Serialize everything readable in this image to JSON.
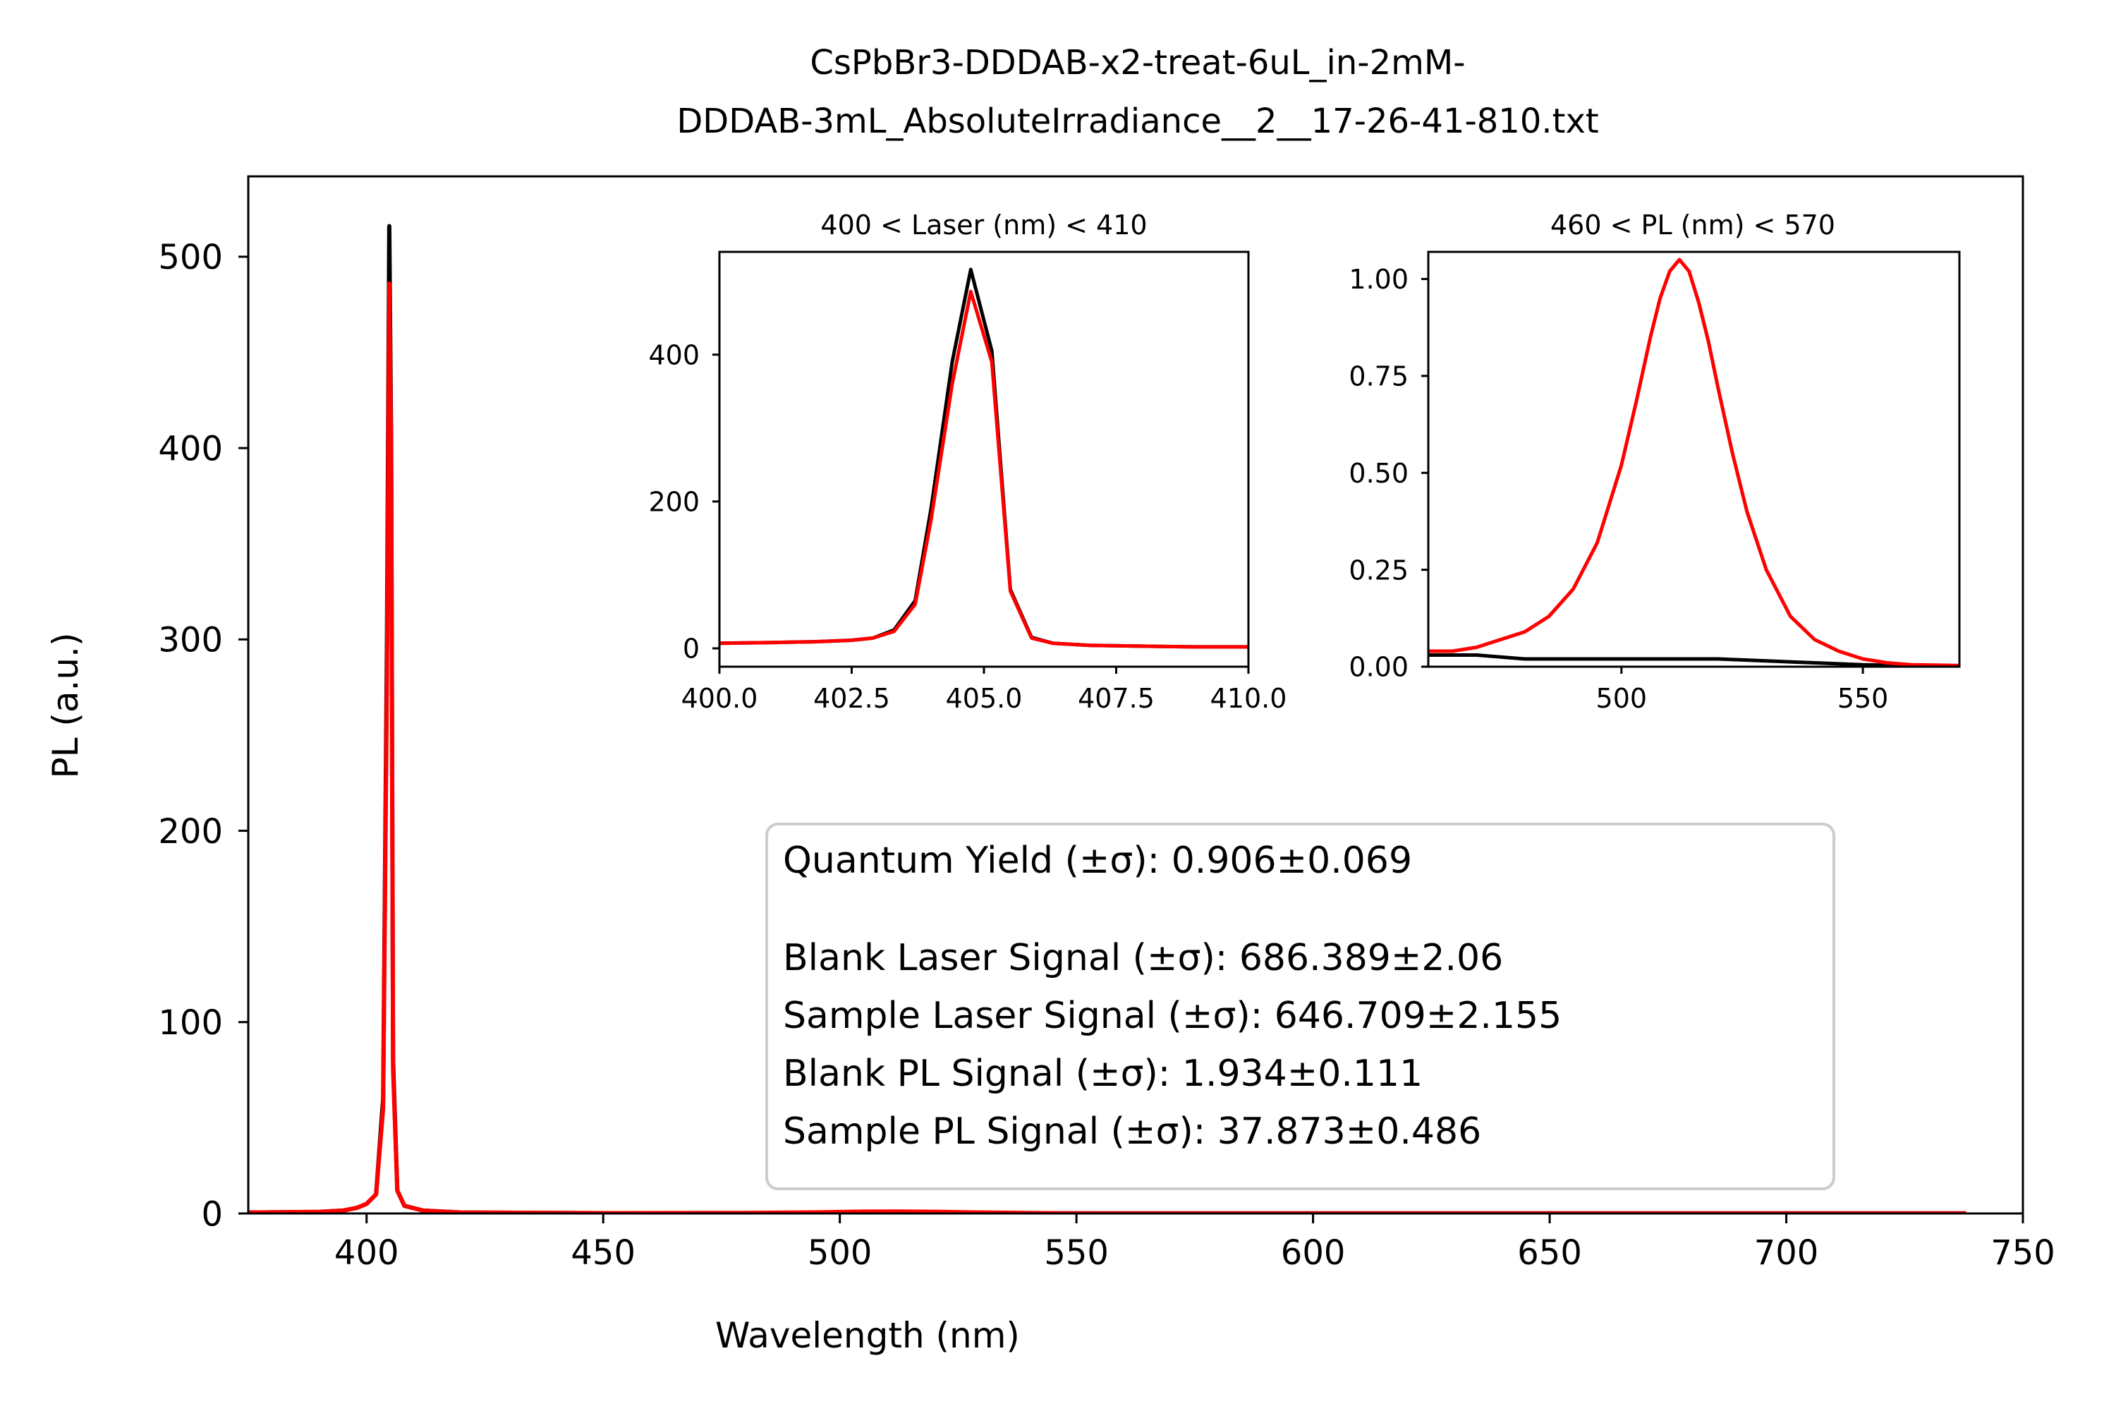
{
  "figure": {
    "title_line1": "CsPbBr3-DDDAB-x2-treat-6uL_in-2mM-",
    "title_line2": "DDDAB-3mL_AbsoluteIrradiance__2__17-26-41-810.txt"
  },
  "colors": {
    "blank": "#000000",
    "sample": "#ff0000"
  },
  "chart_data": [
    {
      "id": "main",
      "type": "line",
      "title": "",
      "xlabel": "Wavelength (nm)",
      "ylabel": "PL (a.u.)",
      "xlim": [
        375,
        750
      ],
      "ylim": [
        0,
        542
      ],
      "xticks": [
        400,
        450,
        500,
        550,
        600,
        650,
        700,
        750
      ],
      "yticks": [
        0,
        100,
        200,
        300,
        400,
        500
      ],
      "series": [
        {
          "key": "blank",
          "x": [
            375,
            390,
            395,
            398,
            400,
            402,
            403.5,
            404.3,
            404.8,
            405.2,
            405.6,
            406.5,
            408,
            412,
            420,
            450,
            500,
            550,
            600,
            650,
            700,
            738
          ],
          "y": [
            0.5,
            0.8,
            1.5,
            3,
            5,
            10,
            60,
            300,
            516,
            400,
            80,
            12,
            4,
            1.5,
            0.5,
            0.2,
            0.1,
            0.1,
            0.1,
            0.1,
            0.1,
            0.1
          ]
        },
        {
          "key": "sample",
          "x": [
            375,
            390,
            395,
            398,
            400,
            402,
            403.5,
            404.3,
            404.8,
            405.2,
            405.6,
            406.5,
            408,
            412,
            420,
            450,
            480,
            495,
            505,
            512,
            520,
            530,
            545,
            560,
            600,
            650,
            700,
            738
          ],
          "y": [
            0.5,
            0.8,
            1.5,
            3,
            5,
            10,
            55,
            280,
            486,
            390,
            75,
            12,
            4,
            1.5,
            0.5,
            0.2,
            0.3,
            0.6,
            0.95,
            1.05,
            0.9,
            0.5,
            0.15,
            0.05,
            0.02,
            0.02,
            0.02,
            0.02
          ]
        }
      ]
    },
    {
      "id": "inset_laser",
      "type": "line",
      "title": "400 < Laser (nm) < 410",
      "xlabel": "",
      "ylabel": "",
      "xlim": [
        400,
        410
      ],
      "ylim": [
        -25,
        540
      ],
      "xticks": [
        400.0,
        402.5,
        405.0,
        407.5,
        410.0
      ],
      "yticks": [
        0,
        200,
        400
      ],
      "series": [
        {
          "key": "blank",
          "x": [
            400.0,
            401.0,
            401.8,
            402.5,
            402.9,
            403.3,
            403.7,
            404.0,
            404.4,
            404.75,
            405.15,
            405.5,
            405.9,
            406.3,
            407.0,
            408.0,
            409.0,
            410.0
          ],
          "y": [
            7,
            8,
            9,
            11,
            14,
            25,
            65,
            190,
            390,
            516,
            405,
            80,
            15,
            7,
            4,
            3,
            2,
            2
          ]
        },
        {
          "key": "sample",
          "x": [
            400.0,
            401.0,
            401.8,
            402.5,
            402.9,
            403.3,
            403.7,
            404.0,
            404.4,
            404.75,
            405.15,
            405.5,
            405.9,
            406.3,
            407.0,
            408.0,
            409.0,
            410.0
          ],
          "y": [
            7,
            8,
            9,
            11,
            14,
            23,
            60,
            175,
            360,
            486,
            390,
            78,
            14,
            7,
            4,
            3,
            2,
            2
          ]
        }
      ]
    },
    {
      "id": "inset_pl",
      "type": "line",
      "title": "460 < PL (nm) < 570",
      "xlabel": "",
      "ylabel": "",
      "xlim": [
        460,
        570
      ],
      "ylim": [
        0,
        1.07
      ],
      "xticks": [
        500,
        550
      ],
      "yticks": [
        0.0,
        0.25,
        0.5,
        0.75,
        1.0
      ],
      "tick_labels": [
        "0.00",
        "0.25",
        "0.50",
        "0.75",
        "1.00"
      ],
      "series": [
        {
          "key": "blank",
          "x": [
            460,
            470,
            480,
            490,
            500,
            510,
            520,
            530,
            540,
            550,
            560,
            570
          ],
          "y": [
            0.03,
            0.03,
            0.02,
            0.02,
            0.02,
            0.02,
            0.02,
            0.015,
            0.01,
            0.005,
            0.003,
            0.002
          ]
        },
        {
          "key": "sample",
          "x": [
            460,
            465,
            470,
            475,
            480,
            485,
            490,
            495,
            500,
            503,
            506,
            508,
            510,
            512,
            514,
            516,
            518,
            520,
            523,
            526,
            530,
            535,
            540,
            545,
            550,
            555,
            560,
            565,
            570
          ],
          "y": [
            0.04,
            0.04,
            0.05,
            0.07,
            0.09,
            0.13,
            0.2,
            0.32,
            0.52,
            0.68,
            0.85,
            0.95,
            1.02,
            1.05,
            1.02,
            0.94,
            0.84,
            0.72,
            0.55,
            0.4,
            0.25,
            0.13,
            0.07,
            0.04,
            0.02,
            0.01,
            0.005,
            0.004,
            0.003
          ]
        }
      ]
    }
  ],
  "stats": {
    "qy_label": "Quantum Yield (±σ): 0.906±0.069",
    "blank_laser": "Blank Laser Signal (±σ): 686.389±2.06",
    "sample_laser": "Sample Laser Signal (±σ): 646.709±2.155",
    "blank_pl": "Blank PL Signal (±σ): 1.934±0.111",
    "sample_pl": "Sample PL Signal (±σ): 37.873±0.486"
  }
}
